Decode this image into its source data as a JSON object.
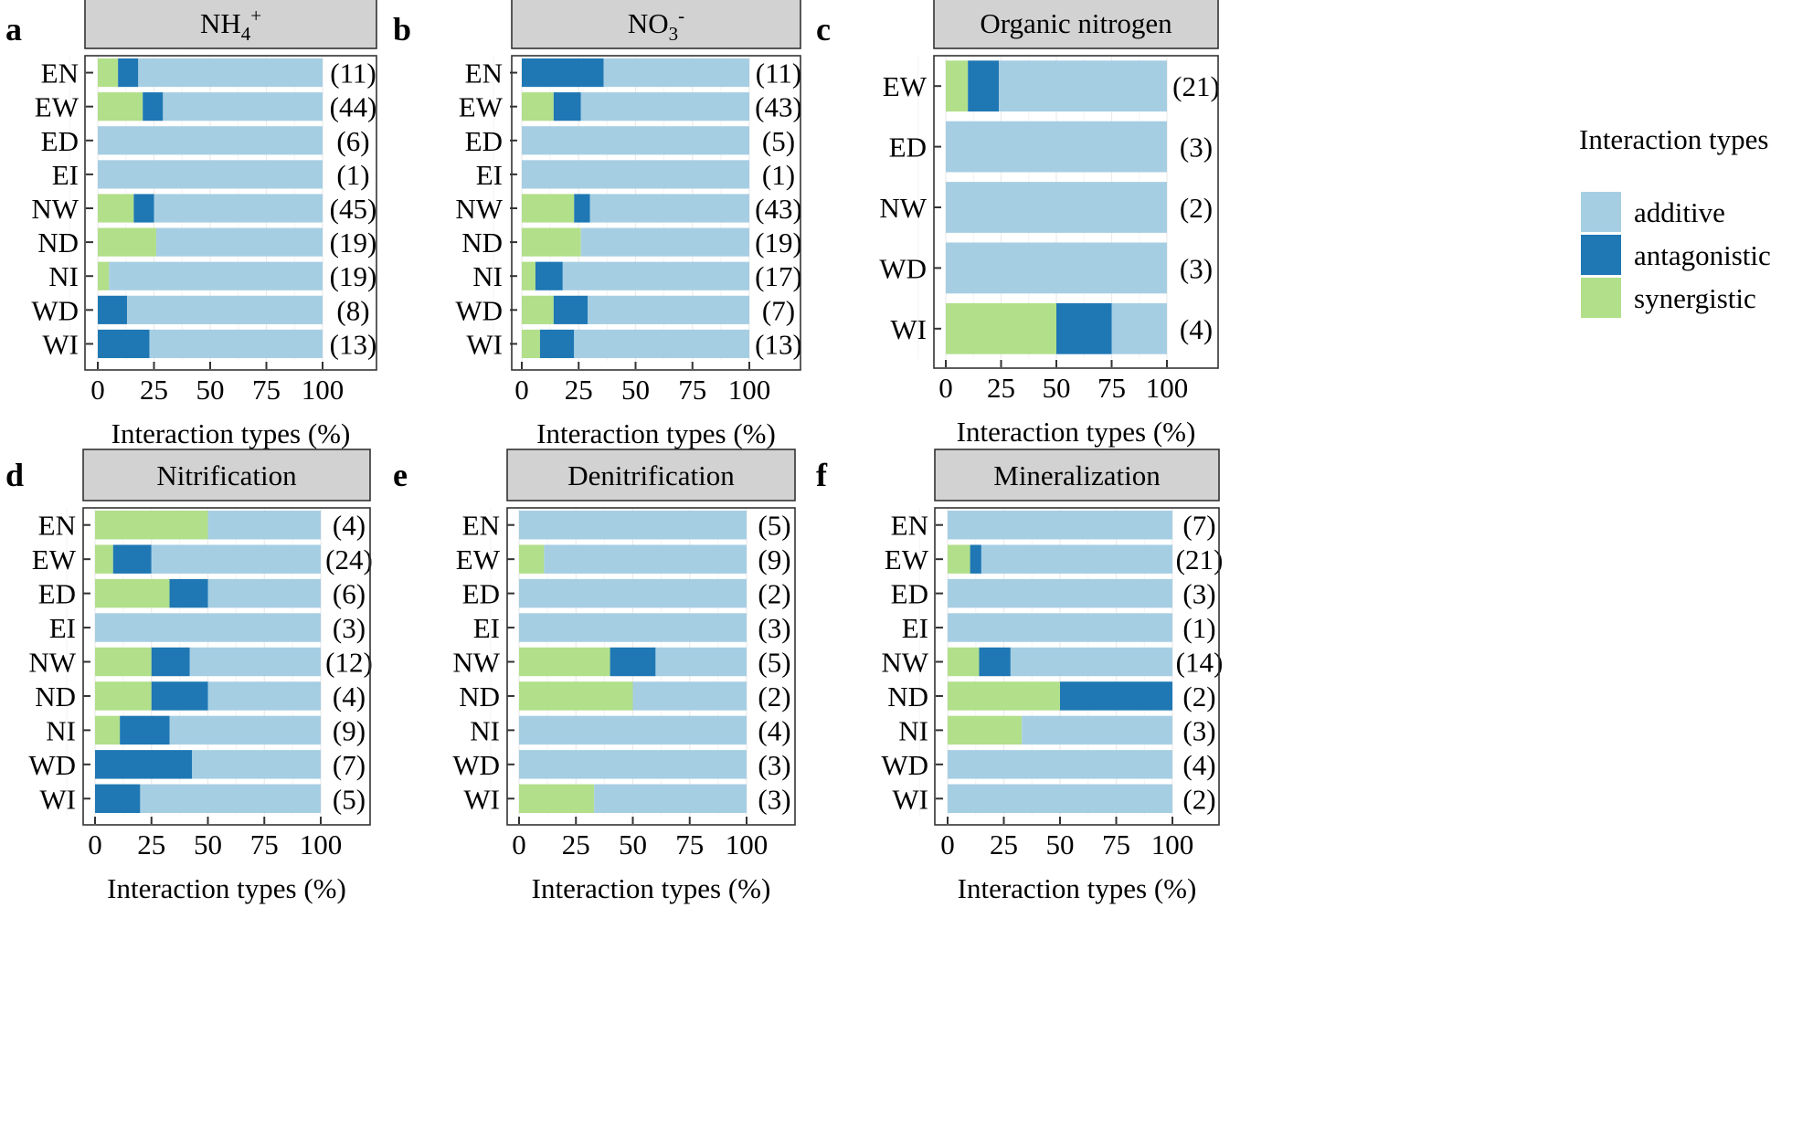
{
  "legend": {
    "title": "Interaction types",
    "items": [
      {
        "key": "additive",
        "label": "additive",
        "color": "#a6cee3"
      },
      {
        "key": "antagonistic",
        "label": "antagonistic",
        "color": "#1f78b4"
      },
      {
        "key": "synergistic",
        "label": "synergistic",
        "color": "#b2df8a"
      }
    ]
  },
  "chart_data": [
    {
      "type": "bar",
      "stacked": true,
      "orientation": "horizontal",
      "panel_letter": "a",
      "title": "NH",
      "title_sub": "4",
      "title_sup": "+",
      "xlabel": "Interaction types (%)",
      "xlim": [
        0,
        100
      ],
      "xticks": [
        "0",
        "25",
        "50",
        "75",
        "100"
      ],
      "categories": [
        "EN",
        "EW",
        "ED",
        "EI",
        "NW",
        "ND",
        "NI",
        "WD",
        "WI"
      ],
      "counts": [
        "(11)",
        "(44)",
        "(6)",
        "(1)",
        "(45)",
        "(19)",
        "(19)",
        "(8)",
        "(13)"
      ],
      "series": [
        {
          "name": "synergistic",
          "values": [
            9,
            20,
            0,
            0,
            16,
            26,
            5,
            0,
            0
          ]
        },
        {
          "name": "antagonistic",
          "values": [
            9,
            9,
            0,
            0,
            9,
            0,
            0,
            13,
            23
          ]
        },
        {
          "name": "additive",
          "values": [
            82,
            71,
            100,
            100,
            75,
            74,
            95,
            87,
            77
          ]
        }
      ]
    },
    {
      "type": "bar",
      "stacked": true,
      "orientation": "horizontal",
      "panel_letter": "b",
      "title": "NO",
      "title_sub": "3",
      "title_sup": "-",
      "xlabel": "Interaction types (%)",
      "xlim": [
        0,
        100
      ],
      "xticks": [
        "0",
        "25",
        "50",
        "75",
        "100"
      ],
      "categories": [
        "EN",
        "EW",
        "ED",
        "EI",
        "NW",
        "ND",
        "NI",
        "WD",
        "WI"
      ],
      "counts": [
        "(11)",
        "(43)",
        "(5)",
        "(1)",
        "(43)",
        "(19)",
        "(17)",
        "(7)",
        "(13)"
      ],
      "series": [
        {
          "name": "synergistic",
          "values": [
            0,
            14,
            0,
            0,
            23,
            26,
            6,
            14,
            8
          ]
        },
        {
          "name": "antagonistic",
          "values": [
            36,
            12,
            0,
            0,
            7,
            0,
            12,
            15,
            15
          ]
        },
        {
          "name": "additive",
          "values": [
            64,
            74,
            100,
            100,
            70,
            74,
            82,
            71,
            77
          ]
        }
      ]
    },
    {
      "type": "bar",
      "stacked": true,
      "orientation": "horizontal",
      "panel_letter": "c",
      "title": "Organic nitrogen",
      "title_sub": "",
      "title_sup": "",
      "xlabel": "Interaction types (%)",
      "xlim": [
        0,
        100
      ],
      "xticks": [
        "0",
        "25",
        "50",
        "75",
        "100"
      ],
      "categories": [
        "EW",
        "ED",
        "NW",
        "WD",
        "WI"
      ],
      "counts": [
        "(21)",
        "(3)",
        "(2)",
        "(3)",
        "(4)"
      ],
      "series": [
        {
          "name": "synergistic",
          "values": [
            10,
            0,
            0,
            0,
            50
          ]
        },
        {
          "name": "antagonistic",
          "values": [
            14,
            0,
            0,
            0,
            25
          ]
        },
        {
          "name": "additive",
          "values": [
            76,
            100,
            100,
            100,
            25
          ]
        }
      ]
    },
    {
      "type": "bar",
      "stacked": true,
      "orientation": "horizontal",
      "panel_letter": "d",
      "title": "Nitrification",
      "title_sub": "",
      "title_sup": "",
      "xlabel": "Interaction types (%)",
      "xlim": [
        0,
        100
      ],
      "xticks": [
        "0",
        "25",
        "50",
        "75",
        "100"
      ],
      "categories": [
        "EN",
        "EW",
        "ED",
        "EI",
        "NW",
        "ND",
        "NI",
        "WD",
        "WI"
      ],
      "counts": [
        "(4)",
        "(24)",
        "(6)",
        "(3)",
        "(12)",
        "(4)",
        "(9)",
        "(7)",
        "(5)"
      ],
      "series": [
        {
          "name": "synergistic",
          "values": [
            50,
            8,
            33,
            0,
            25,
            25,
            11,
            0,
            0
          ]
        },
        {
          "name": "antagonistic",
          "values": [
            0,
            17,
            17,
            0,
            17,
            25,
            22,
            43,
            20
          ]
        },
        {
          "name": "additive",
          "values": [
            50,
            75,
            50,
            100,
            58,
            50,
            67,
            57,
            80
          ]
        }
      ]
    },
    {
      "type": "bar",
      "stacked": true,
      "orientation": "horizontal",
      "panel_letter": "e",
      "title": "Denitrification",
      "title_sub": "",
      "title_sup": "",
      "xlabel": "Interaction types (%)",
      "xlim": [
        0,
        100
      ],
      "xticks": [
        "0",
        "25",
        "50",
        "75",
        "100"
      ],
      "categories": [
        "EN",
        "EW",
        "ED",
        "EI",
        "NW",
        "ND",
        "NI",
        "WD",
        "WI"
      ],
      "counts": [
        "(5)",
        "(9)",
        "(2)",
        "(3)",
        "(5)",
        "(2)",
        "(4)",
        "(3)",
        "(3)"
      ],
      "series": [
        {
          "name": "synergistic",
          "values": [
            0,
            11,
            0,
            0,
            40,
            50,
            0,
            0,
            33
          ]
        },
        {
          "name": "antagonistic",
          "values": [
            0,
            0,
            0,
            0,
            20,
            0,
            0,
            0,
            0
          ]
        },
        {
          "name": "additive",
          "values": [
            100,
            89,
            100,
            100,
            40,
            50,
            100,
            100,
            67
          ]
        }
      ]
    },
    {
      "type": "bar",
      "stacked": true,
      "orientation": "horizontal",
      "panel_letter": "f",
      "title": "Mineralization",
      "title_sub": "",
      "title_sup": "",
      "xlabel": "Interaction types (%)",
      "xlim": [
        0,
        100
      ],
      "xticks": [
        "0",
        "25",
        "50",
        "75",
        "100"
      ],
      "categories": [
        "EN",
        "EW",
        "ED",
        "EI",
        "NW",
        "ND",
        "NI",
        "WD",
        "WI"
      ],
      "counts": [
        "(7)",
        "(21)",
        "(3)",
        "(1)",
        "(14)",
        "(2)",
        "(3)",
        "(4)",
        "(2)"
      ],
      "series": [
        {
          "name": "synergistic",
          "values": [
            0,
            10,
            0,
            0,
            14,
            50,
            33,
            0,
            0
          ]
        },
        {
          "name": "antagonistic",
          "values": [
            0,
            5,
            0,
            0,
            14,
            50,
            0,
            0,
            0
          ]
        },
        {
          "name": "additive",
          "values": [
            100,
            85,
            100,
            100,
            72,
            0,
            67,
            100,
            100
          ]
        }
      ]
    }
  ]
}
